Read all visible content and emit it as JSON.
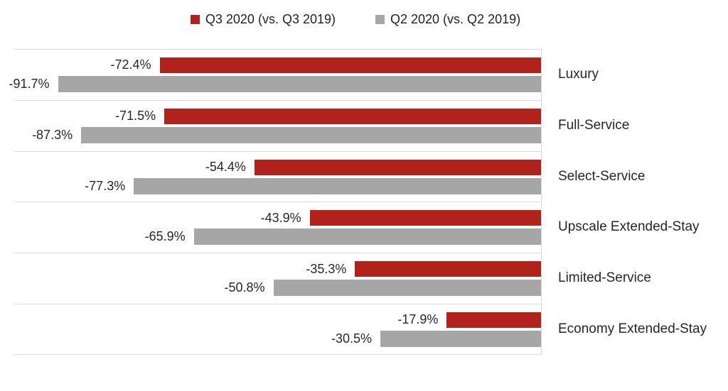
{
  "chart_data": {
    "type": "bar",
    "orientation": "horizontal",
    "title": "",
    "xlabel": "",
    "ylabel": "",
    "xlim": [
      -100,
      0
    ],
    "value_axis_visible": false,
    "gridlines": "horizontal-row-dividers",
    "legend_position": "top",
    "categories": [
      "Luxury",
      "Full-Service",
      "Select-Service",
      "Upscale Extended-Stay",
      "Limited-Service",
      "Economy Extended-Stay"
    ],
    "series": [
      {
        "name": "Q3 2020 (vs. Q3 2019)",
        "color": "#b1221a",
        "values": [
          -72.4,
          -71.5,
          -54.4,
          -43.9,
          -35.3,
          -17.9
        ],
        "labels": [
          "-72.4%",
          "-71.5%",
          "-54.4%",
          "-43.9%",
          "-35.3%",
          "-17.9%"
        ]
      },
      {
        "name": "Q2 2020 (vs. Q2 2019)",
        "color": "#a6a6a6",
        "values": [
          -91.7,
          -87.3,
          -77.3,
          -65.9,
          -50.8,
          -30.5
        ],
        "labels": [
          "-91.7%",
          "-87.3%",
          "-77.3%",
          "-65.9%",
          "-50.8%",
          "-30.5%"
        ]
      }
    ],
    "colors": {
      "divider_line": "#d9d9d9",
      "label_text": "#262626",
      "legend_text": "#1f1f1f",
      "background": "#ffffff"
    }
  }
}
